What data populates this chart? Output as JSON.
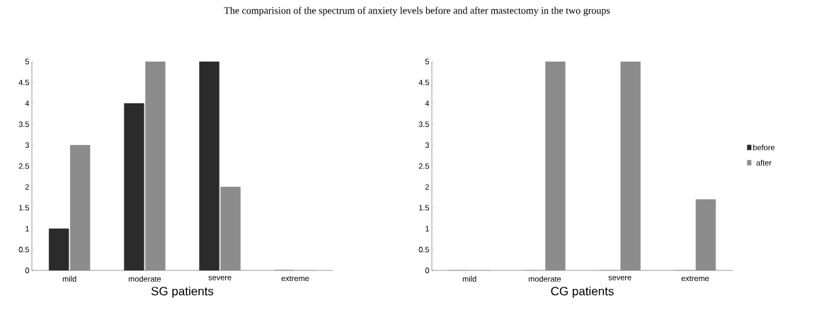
{
  "chart_data": [
    {
      "type": "bar",
      "title": "The comparision of the spectrum of anxiety levels before and after mastectomy in the two groups",
      "xlabel": "SG patients",
      "categories": [
        "mild",
        "moderate",
        "severe",
        "extreme"
      ],
      "series": [
        {
          "color": "#2b2b2b",
          "values": [
            1,
            4,
            5,
            0
          ]
        },
        {
          "color": "#8c8c8c",
          "values": [
            3,
            5,
            2,
            0
          ]
        }
      ],
      "ylim": [
        0,
        5
      ],
      "yticks": [
        0,
        0.5,
        1,
        1.5,
        2,
        2.5,
        3,
        3.5,
        4,
        4.5,
        5
      ],
      "grid": false,
      "legend": false
    },
    {
      "type": "bar",
      "xlabel": "CG patients",
      "categories": [
        "mild",
        "moderate",
        "severe",
        "extreme"
      ],
      "series": [
        {
          "name": "before",
          "color": "#2b2b2b",
          "values": [
            0,
            0,
            0,
            0
          ]
        },
        {
          "name": "after",
          "color": "#8c8c8c",
          "values": [
            0,
            5,
            5,
            1.7
          ]
        }
      ],
      "ylim": [
        0,
        5
      ],
      "yticks": [
        0,
        0.5,
        1,
        1.5,
        2,
        2.5,
        3,
        3.5,
        4,
        4.5,
        5
      ],
      "grid": false,
      "legend": "right"
    }
  ]
}
